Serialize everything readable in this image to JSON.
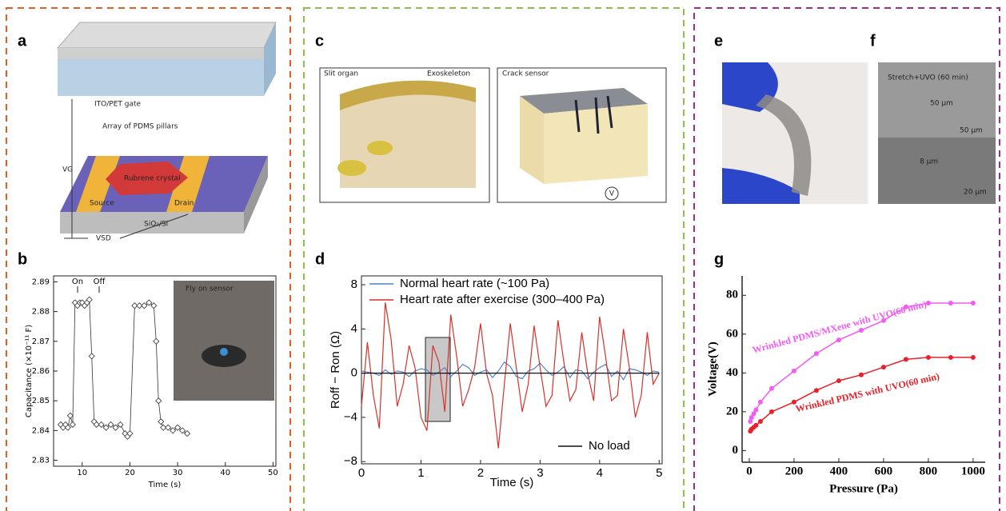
{
  "panel_labels": [
    "a",
    "b",
    "c",
    "d",
    "e",
    "f",
    "g"
  ],
  "figures": {
    "a": {
      "gate": "ITO/PET gate",
      "pillars": "Array of PDMS pillars",
      "crystal": "Rubrene crystal",
      "source": "Source",
      "drain": "Drain",
      "substrate": "SiO₂/Si",
      "vg": "VG",
      "vsd": "VSD"
    },
    "b_inset": "Fly on sensor",
    "c": {
      "left_title": "Slit organ",
      "exoskeleton": "Exoskeleton",
      "right_title": "Crack sensor",
      "meter": "V"
    },
    "f": {
      "condition": "Stretch+UVO (60 min)",
      "period": "50 μm",
      "scale_top": "50 μm",
      "height": "8 μm",
      "scale_bottom": "20 μm"
    }
  },
  "chart_data": [
    {
      "type": "line",
      "marker": "diamond",
      "x_label": "Time (s)",
      "y_label": "Capacitance (×10⁻¹¹ F)",
      "annotations": [
        "On",
        "Off"
      ],
      "xlim": [
        4,
        50.6
      ],
      "xticks": [
        10,
        20,
        30,
        40,
        50
      ],
      "ylim": [
        2.828,
        2.892
      ],
      "yticks": [
        2.83,
        2.84,
        2.85,
        2.86,
        2.87,
        2.88,
        2.89
      ],
      "x": [
        5.5,
        6,
        6.5,
        7,
        7.5,
        8,
        8.5,
        9,
        9.5,
        10,
        10.5,
        11,
        11.5,
        12,
        12.5,
        13,
        14,
        15,
        16,
        17,
        18,
        19,
        19.5,
        20,
        21,
        22,
        23,
        24,
        25,
        25.5,
        26,
        26.5,
        27,
        28,
        29,
        30,
        31,
        32
      ],
      "series": [
        {
          "color": "#333333",
          "values": [
            2.842,
            2.841,
            2.842,
            2.841,
            2.845,
            2.842,
            2.883,
            2.882,
            2.883,
            2.883,
            2.882,
            2.883,
            2.884,
            2.865,
            2.843,
            2.842,
            2.842,
            2.841,
            2.842,
            2.841,
            2.842,
            2.839,
            2.838,
            2.839,
            2.882,
            2.882,
            2.882,
            2.883,
            2.882,
            2.87,
            2.85,
            2.843,
            2.841,
            2.841,
            2.84,
            2.841,
            2.84,
            2.839
          ]
        }
      ]
    },
    {
      "type": "line",
      "x_label": "Time (s)",
      "y_label": "Roff − Ron (Ω)",
      "xlim": [
        0,
        5.05
      ],
      "xticks": [
        0,
        1,
        2,
        3,
        4,
        5
      ],
      "ylim": [
        -8.2,
        8.8
      ],
      "yticks": [
        {
          "value": -8,
          "label": "−8"
        },
        {
          "value": -4,
          "label": "−4"
        },
        0,
        4,
        8
      ],
      "x": [
        0,
        0.1,
        0.2,
        0.3,
        0.4,
        0.5,
        0.6,
        0.7,
        0.8,
        0.9,
        1,
        1.1,
        1.2,
        1.3,
        1.4,
        1.5,
        1.6,
        1.7,
        1.8,
        1.9,
        2,
        2.1,
        2.2,
        2.3,
        2.4,
        2.5,
        2.6,
        2.7,
        2.8,
        2.9,
        3,
        3.1,
        3.2,
        3.3,
        3.4,
        3.5,
        3.6,
        3.7,
        3.8,
        3.9,
        4,
        4.1,
        4.2,
        4.3,
        4.4,
        4.5,
        4.6,
        4.7,
        4.8,
        4.9,
        5
      ],
      "series": [
        {
          "name": "Normal heart rate (~100 Pa)",
          "color": "#4a86c8",
          "legend": "upper left",
          "values": [
            0.2,
            0.1,
            0,
            -0.2,
            0.3,
            -0.1,
            0.2,
            0.1,
            -0.3,
            0.2,
            0.4,
            0.3,
            -0.2,
            0.1,
            0.5,
            -0.3,
            0.2,
            0.8,
            0.5,
            -0.2,
            0.1,
            0.3,
            -0.4,
            0.2,
            1,
            0.6,
            -0.3,
            -0.5,
            0.2,
            0.4,
            0.9,
            0.3,
            -0.2,
            0.1,
            0.6,
            -0.4,
            0.3,
            0.2,
            -0.5,
            0.1,
            0.5,
            0.8,
            -0.3,
            0.2,
            -0.6,
            0.4,
            0.3,
            0.1,
            -0.2,
            0.2,
            0.1
          ]
        },
        {
          "name": "Heart rate after exercise (300–400 Pa)",
          "color": "#d9312a",
          "legend": "upper left",
          "values": [
            -3,
            2.8,
            -2,
            -5,
            6.4,
            3,
            -3,
            -1,
            2.5,
            0.5,
            -4,
            -5.2,
            2.5,
            1,
            -3.5,
            5.3,
            1.5,
            -3,
            -1.5,
            0.5,
            4.5,
            0,
            -2,
            -6.8,
            -1,
            4.5,
            0.5,
            -3.5,
            -1,
            4.3,
            0.5,
            -3,
            -2,
            4.8,
            1,
            -2.5,
            -1.5,
            3.7,
            0,
            -2.5,
            5.1,
            1.5,
            -2.5,
            -2,
            4,
            0.5,
            -4,
            -2,
            3.7,
            -1,
            0
          ]
        },
        {
          "name": "No load",
          "color": "#111111",
          "legend": "lower right",
          "x": [
            0,
            5
          ],
          "values": [
            0,
            0
          ]
        }
      ]
    },
    {
      "type": "line",
      "marker": "circle",
      "x_label": "Pressure (Pa)",
      "y_label": "Voltage(V)",
      "xlim": [
        -32,
        1054
      ],
      "xticks": [
        0,
        200,
        400,
        600,
        800,
        1000
      ],
      "ylim": [
        -6,
        90
      ],
      "yticks": [
        0,
        20,
        40,
        60,
        80
      ],
      "x": [
        5,
        10,
        20,
        30,
        50,
        100,
        200,
        300,
        400,
        500,
        600,
        700,
        800,
        900,
        1000
      ],
      "series": [
        {
          "name": "Wrinkled PDMS/MXene with UVO(60 min)",
          "color": "#f25cf2",
          "values": [
            15,
            17,
            19,
            21,
            25,
            32,
            41,
            50,
            57,
            62,
            67,
            74,
            76,
            76,
            76
          ]
        },
        {
          "name": "Wrinkled PDMS with UVO(60 min)",
          "color": "#e8202a",
          "values": [
            10,
            11,
            12,
            13,
            15,
            20,
            25,
            31,
            36,
            39,
            43,
            47,
            48,
            48,
            48
          ]
        }
      ]
    }
  ]
}
